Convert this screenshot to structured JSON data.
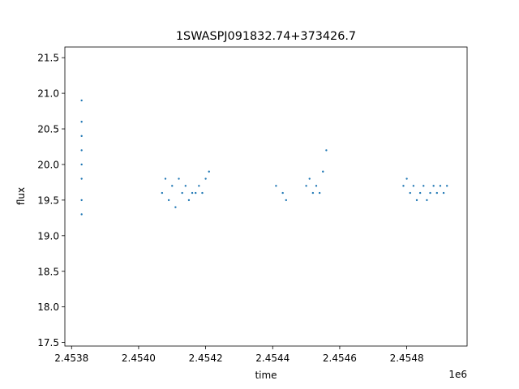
{
  "chart_data": {
    "type": "scatter",
    "title": "1SWASPJ091832.74+373426.7",
    "xlabel": "time",
    "ylabel": "flux",
    "x_offset_label": "1e6",
    "xlim": [
      2.45378,
      2.45498
    ],
    "ylim": [
      17.45,
      21.65
    ],
    "xticks": [
      2.4538,
      2.454,
      2.4542,
      2.4544,
      2.4546,
      2.4548
    ],
    "xtick_labels": [
      "2.4538",
      "2.4540",
      "2.4542",
      "2.4544",
      "2.4546",
      "2.4548"
    ],
    "yticks": [
      17.5,
      18.0,
      18.5,
      19.0,
      19.5,
      20.0,
      20.5,
      21.0,
      21.5
    ],
    "ytick_labels": [
      "17.5",
      "18.0",
      "18.5",
      "19.0",
      "19.5",
      "20.0",
      "20.5",
      "21.0",
      "21.5"
    ],
    "grid": false,
    "marker_color": "#1f77b4",
    "series": [
      {
        "x": [
          2.45383,
          2.45383,
          2.45383,
          2.45383,
          2.45383,
          2.45383,
          2.45383,
          2.45383,
          2.45407,
          2.45408,
          2.45409,
          2.4541,
          2.45411,
          2.45412,
          2.45413,
          2.45414,
          2.45415,
          2.45416,
          2.45417,
          2.45418,
          2.45419,
          2.4542,
          2.45421,
          2.45441,
          2.45443,
          2.45444,
          2.4545,
          2.45451,
          2.45452,
          2.45453,
          2.45454,
          2.45455,
          2.45456,
          2.45479,
          2.4548,
          2.45481,
          2.45482,
          2.45483,
          2.45484,
          2.45485,
          2.45486,
          2.45487,
          2.45488,
          2.45489,
          2.4549,
          2.45491,
          2.45492
        ],
        "y": [
          20.9,
          20.6,
          20.4,
          20.2,
          20.0,
          19.8,
          19.5,
          19.3,
          19.6,
          19.8,
          19.5,
          19.7,
          19.4,
          19.8,
          19.6,
          19.7,
          19.5,
          19.6,
          19.6,
          19.7,
          19.6,
          19.8,
          19.9,
          19.7,
          19.6,
          19.5,
          19.7,
          19.8,
          19.6,
          19.7,
          19.6,
          19.9,
          20.2,
          19.7,
          19.8,
          19.6,
          19.7,
          19.5,
          19.6,
          19.7,
          19.5,
          19.6,
          19.7,
          19.6,
          19.7,
          19.6,
          19.7
        ]
      }
    ]
  }
}
